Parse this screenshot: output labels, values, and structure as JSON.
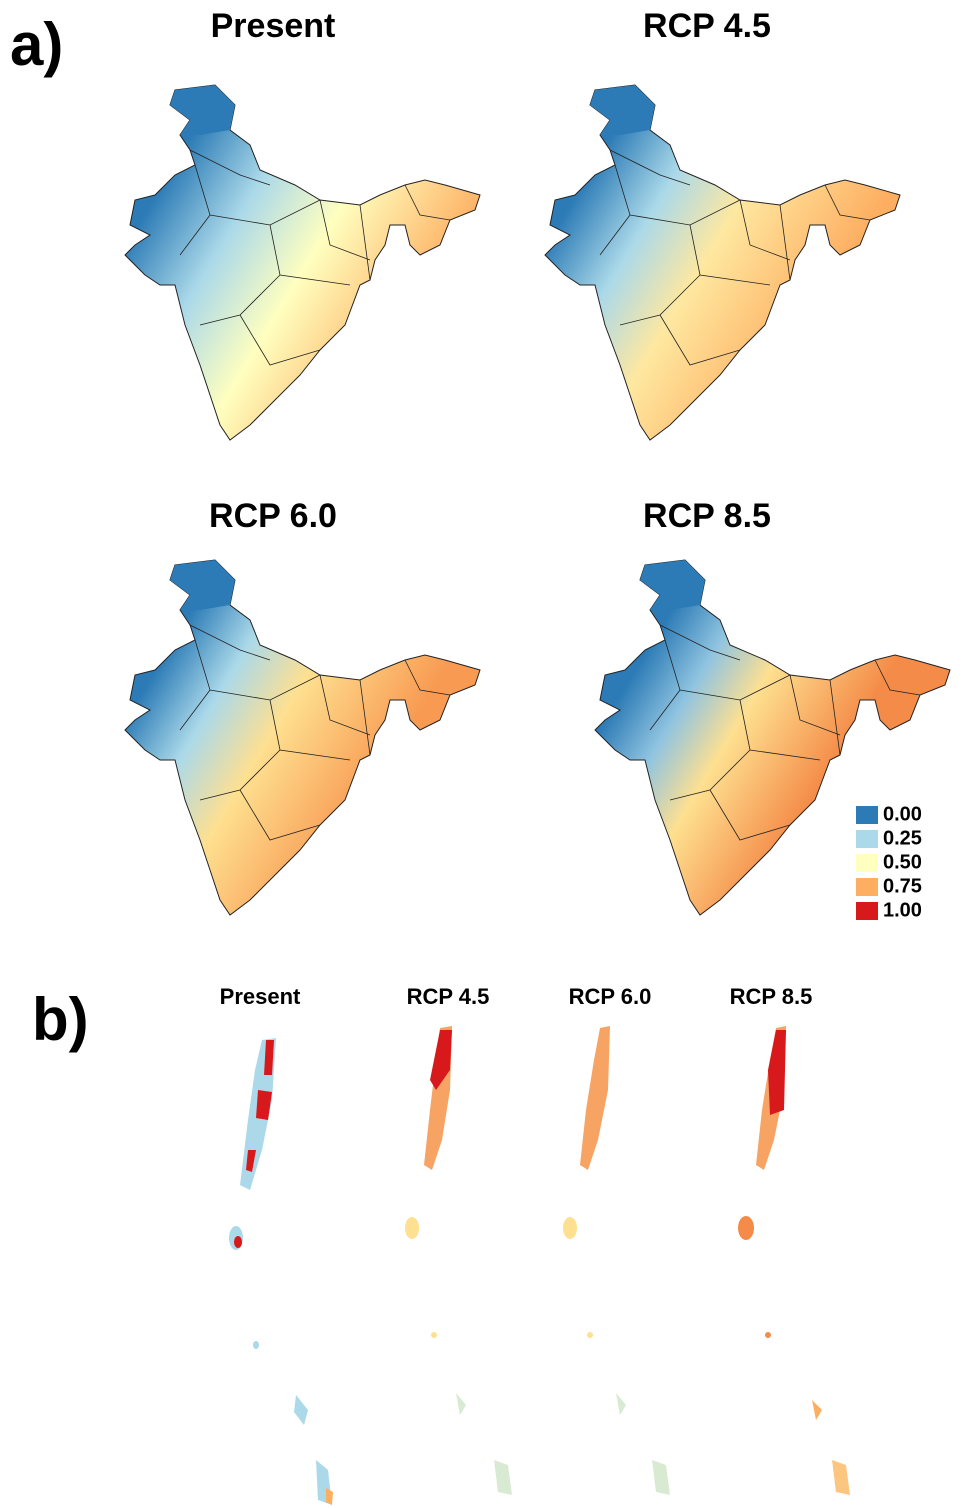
{
  "panel_a": {
    "label": "a)",
    "maps": [
      {
        "title": "Present"
      },
      {
        "title": "RCP 4.5"
      },
      {
        "title": "RCP 6.0"
      },
      {
        "title": "RCP 8.5"
      }
    ]
  },
  "legend": {
    "items": [
      {
        "label": "0.00",
        "color": "#2c7bb6"
      },
      {
        "label": "0.25",
        "color": "#abd9e9"
      },
      {
        "label": "0.50",
        "color": "#ffffbf"
      },
      {
        "label": "0.75",
        "color": "#fdae61"
      },
      {
        "label": "1.00",
        "color": "#d7191c"
      }
    ]
  },
  "panel_b": {
    "label": "b)",
    "maps": [
      {
        "title": "Present"
      },
      {
        "title": "RCP 4.5"
      },
      {
        "title": "RCP 6.0"
      },
      {
        "title": "RCP 8.5"
      }
    ]
  }
}
